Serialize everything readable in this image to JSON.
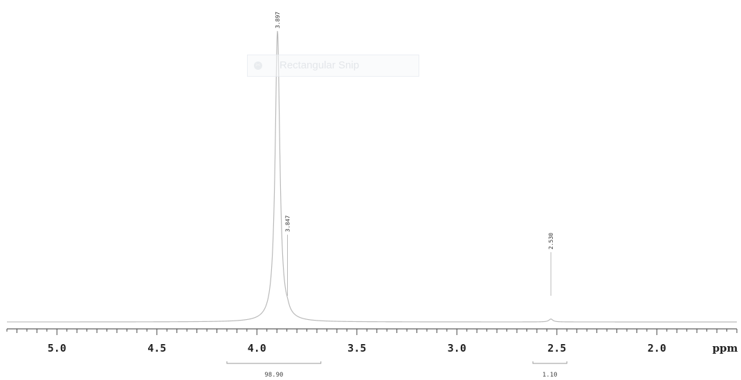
{
  "chart_data": {
    "type": "line",
    "xlabel": "ppm",
    "xlim": [
      5.25,
      1.6
    ],
    "x_reversed": true,
    "x_ticks": [
      "5.0",
      "4.5",
      "4.0",
      "3.5",
      "3.0",
      "2.5",
      "2.0"
    ],
    "x_tick_values": [
      5.0,
      4.5,
      4.0,
      3.5,
      3.0,
      2.5,
      2.0
    ],
    "minor_tick_step": 0.05,
    "grid": false,
    "series": [
      {
        "peaks": [
          {
            "ppm": 3.897,
            "height": 1.0,
            "width": 0.014
          },
          {
            "ppm": 3.847,
            "height": 0.01,
            "width": 0.01
          },
          {
            "ppm": 2.53,
            "height": 0.01,
            "width": 0.012
          }
        ]
      }
    ],
    "peak_labels": [
      {
        "ppm": 3.897,
        "label": "3.897",
        "top": 1.0
      },
      {
        "ppm": 3.847,
        "label": "3.847",
        "top": 0.3
      },
      {
        "ppm": 2.53,
        "label": "2.530",
        "top": 0.24
      }
    ],
    "integrals": [
      {
        "from": 4.15,
        "to": 3.68,
        "value": "98.90"
      },
      {
        "from": 2.62,
        "to": 2.45,
        "value": "1.10"
      }
    ]
  },
  "overlay": {
    "label": "Rectangular Snip",
    "icon": "snip-icon"
  }
}
